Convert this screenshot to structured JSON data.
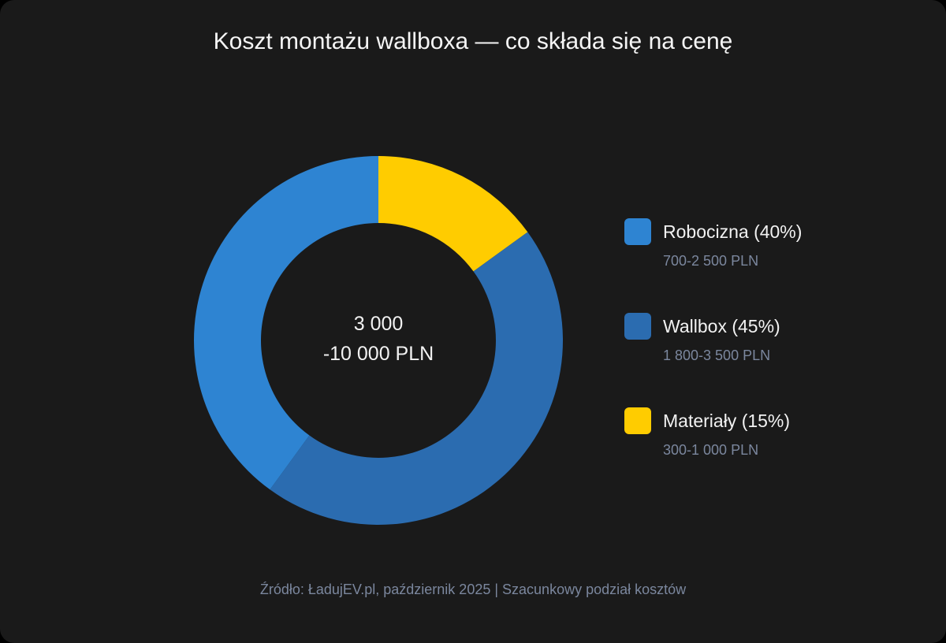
{
  "title": "Koszt montażu wallboxa — co składa się na cenę",
  "center": {
    "line1": "3 000",
    "line2": "-10 000 PLN"
  },
  "legend": [
    {
      "label": "Robocizna (40%)",
      "range": "700-2 500 PLN",
      "color": "#2e84d2"
    },
    {
      "label": "Wallbox (45%)",
      "range": "1 800-3 500 PLN",
      "color": "#2b6cb0"
    },
    {
      "label": "Materiały (15%)",
      "range": "300-1 000 PLN",
      "color": "#ffcc00"
    }
  ],
  "source": "Źródło: ŁadujEV.pl, październik 2025 | Szacunkowy podział kosztów",
  "colors": {
    "background": "#1a1a1a",
    "text": "#f2f2f2",
    "muted": "#7b879e"
  },
  "chart_data": {
    "type": "pie",
    "variant": "donut",
    "title": "Koszt montażu wallboxa — co składa się na cenę",
    "categories": [
      "Materiały",
      "Wallbox",
      "Robocizna"
    ],
    "values": [
      15,
      45,
      40
    ],
    "unit": "%",
    "ranges_pln": [
      "300-1 000 PLN",
      "1 800-3 500 PLN",
      "700-2 500 PLN"
    ],
    "colors": [
      "#ffcc00",
      "#2b6cb0",
      "#2e84d2"
    ],
    "start_angle": "12 o'clock, clockwise",
    "center_text": "3 000 -10 000 PLN",
    "legend_position": "right",
    "source": "Źródło: ŁadujEV.pl, październik 2025 | Szacunkowy podział kosztów"
  }
}
